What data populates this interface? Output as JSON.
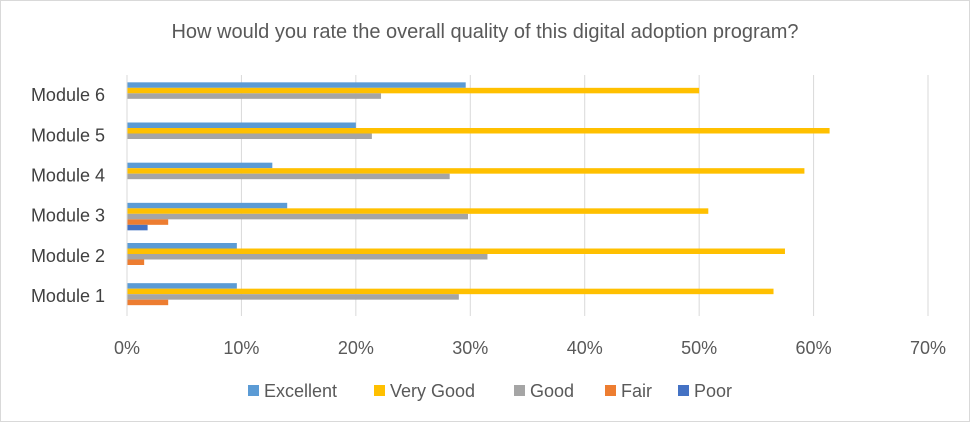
{
  "chart_data": {
    "type": "bar",
    "orientation": "horizontal",
    "title": "How would you rate the overall quality of this digital adoption program?",
    "categories": [
      "Module 1",
      "Module 2",
      "Module 3",
      "Module 4",
      "Module 5",
      "Module 6"
    ],
    "series": [
      {
        "name": "Excellent",
        "color": "#5b9bd5",
        "values": [
          9.6,
          9.6,
          14.0,
          12.7,
          20.0,
          29.6
        ]
      },
      {
        "name": "Very Good",
        "color": "#ffc000",
        "values": [
          56.5,
          57.5,
          50.8,
          59.2,
          61.4,
          50.0
        ]
      },
      {
        "name": "Good",
        "color": "#a5a5a5",
        "values": [
          29.0,
          31.5,
          29.8,
          28.2,
          21.4,
          22.2
        ]
      },
      {
        "name": "Fair",
        "color": "#ed7d31",
        "values": [
          3.6,
          1.5,
          3.6,
          0,
          0,
          0
        ]
      },
      {
        "name": "Poor",
        "color": "#4472c4",
        "values": [
          0,
          0,
          1.8,
          0,
          0,
          0
        ]
      }
    ],
    "xlim": [
      0,
      70
    ],
    "xticks": [
      "0%",
      "10%",
      "20%",
      "30%",
      "40%",
      "50%",
      "60%",
      "70%"
    ],
    "grid": true,
    "legend_position": "bottom"
  }
}
